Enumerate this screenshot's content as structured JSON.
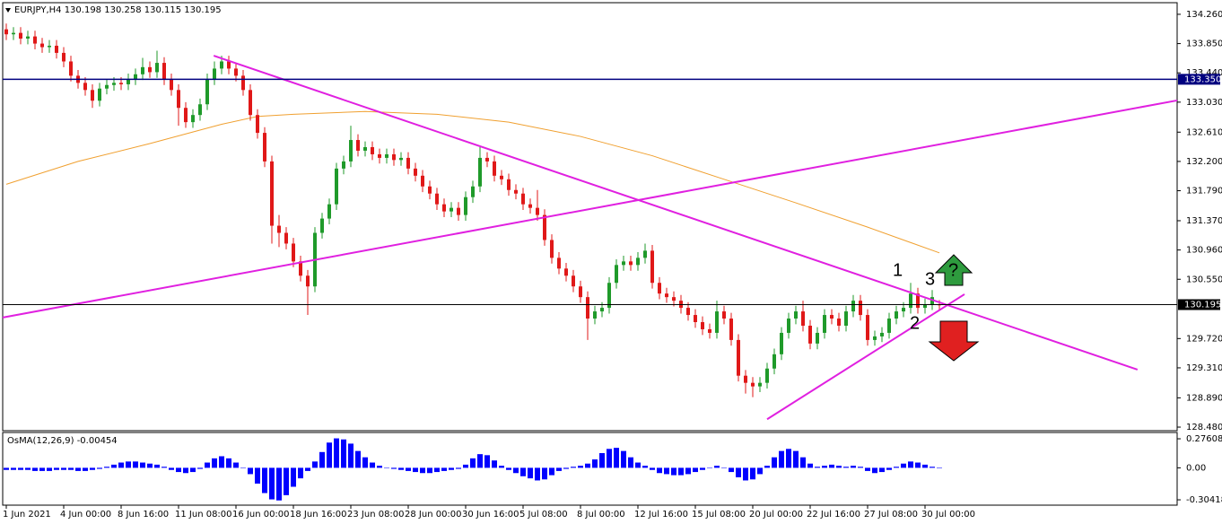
{
  "chart_data": {
    "type": "candlestick",
    "title": "EURJPY,H4  130.198 130.258 130.115 130.195",
    "up_color": "#1f9a2a",
    "down_color": "#e01818",
    "open": [
      134.05,
      133.98,
      134.0,
      133.92,
      133.95,
      133.85,
      133.8,
      133.82,
      133.72,
      133.6,
      133.4,
      133.3,
      133.2,
      133.05,
      133.22,
      133.27,
      133.3,
      133.28,
      133.35,
      133.42,
      133.52,
      133.45,
      133.58,
      133.35,
      133.2,
      132.95,
      132.75,
      132.85,
      133.0,
      133.35,
      133.5,
      133.6,
      133.5,
      133.4,
      133.2,
      132.85,
      132.6,
      132.2,
      131.3,
      131.2,
      131.05,
      130.8,
      130.6,
      130.45,
      131.2,
      131.4,
      131.6,
      132.1,
      132.2,
      132.5,
      132.35,
      132.4,
      132.3,
      132.25,
      132.3,
      132.22,
      132.25,
      132.1,
      132.0,
      131.85,
      131.75,
      131.6,
      131.5,
      131.55,
      131.45,
      131.7,
      131.85,
      132.25,
      132.2,
      132.0,
      131.95,
      131.8,
      131.75,
      131.6,
      131.55,
      131.45,
      131.1,
      130.85,
      130.7,
      130.6,
      130.45,
      130.3,
      130.0,
      130.1,
      130.15,
      130.5,
      130.75,
      130.8,
      130.75,
      130.85,
      130.95,
      130.5,
      130.35,
      130.3,
      130.25,
      130.15,
      130.05,
      129.95,
      129.85,
      129.8,
      130.1,
      130.0,
      129.7,
      129.2,
      129.1,
      129.05,
      129.1,
      129.3,
      129.5,
      129.8,
      130.0,
      130.1,
      129.9,
      129.65,
      129.8,
      130.05,
      130.0,
      129.9,
      130.1,
      130.25,
      130.05,
      129.7,
      129.75,
      129.8,
      130.0,
      130.1,
      130.15,
      130.35,
      130.15,
      130.2,
      130.198
    ],
    "high": [
      134.13,
      134.08,
      134.08,
      134.03,
      134.03,
      133.93,
      133.9,
      133.9,
      133.8,
      133.68,
      133.48,
      133.38,
      133.28,
      133.3,
      133.35,
      133.38,
      133.38,
      133.43,
      133.5,
      133.65,
      133.6,
      133.75,
      133.66,
      133.43,
      133.28,
      133.03,
      132.93,
      133.08,
      133.43,
      133.6,
      133.68,
      133.68,
      133.58,
      133.48,
      133.28,
      132.93,
      132.68,
      132.28,
      131.45,
      131.28,
      131.13,
      130.88,
      130.68,
      131.28,
      131.48,
      131.68,
      132.18,
      132.28,
      132.7,
      132.58,
      132.48,
      132.48,
      132.38,
      132.38,
      132.38,
      132.33,
      132.33,
      132.18,
      132.08,
      131.93,
      131.83,
      131.68,
      131.63,
      131.63,
      131.78,
      131.93,
      132.4,
      132.33,
      132.28,
      132.08,
      132.03,
      131.88,
      131.83,
      131.68,
      131.8,
      131.53,
      131.18,
      130.93,
      130.78,
      130.68,
      130.53,
      130.38,
      130.18,
      130.23,
      130.58,
      130.83,
      130.88,
      130.88,
      130.93,
      131.05,
      131.03,
      130.58,
      130.43,
      130.38,
      130.33,
      130.23,
      130.13,
      130.03,
      129.93,
      130.25,
      130.18,
      130.08,
      129.78,
      129.28,
      129.18,
      129.18,
      129.38,
      129.58,
      129.88,
      130.08,
      130.18,
      130.25,
      129.98,
      129.88,
      130.13,
      130.13,
      130.08,
      130.18,
      130.33,
      130.33,
      130.13,
      129.83,
      129.88,
      130.08,
      130.18,
      130.23,
      130.5,
      130.43,
      130.28,
      130.4,
      130.258
    ],
    "low": [
      133.9,
      133.9,
      133.84,
      133.84,
      133.77,
      133.72,
      133.72,
      133.64,
      133.52,
      133.32,
      133.22,
      133.12,
      132.95,
      132.97,
      133.14,
      133.19,
      133.2,
      133.2,
      133.27,
      133.34,
      133.37,
      133.37,
      133.27,
      133.12,
      132.7,
      132.67,
      132.67,
      132.77,
      132.92,
      133.27,
      133.42,
      133.42,
      133.32,
      133.12,
      132.77,
      132.52,
      132.12,
      131.05,
      131.0,
      130.97,
      130.72,
      130.52,
      130.05,
      130.37,
      131.12,
      131.32,
      131.52,
      132.02,
      132.12,
      132.27,
      132.27,
      132.22,
      132.17,
      132.17,
      132.14,
      132.14,
      132.02,
      131.92,
      131.77,
      131.67,
      131.52,
      131.42,
      131.42,
      131.37,
      131.37,
      131.62,
      131.77,
      132.12,
      131.92,
      131.87,
      131.72,
      131.67,
      131.52,
      131.47,
      131.37,
      131.02,
      130.77,
      130.62,
      130.52,
      130.37,
      130.22,
      129.7,
      129.92,
      130.02,
      130.07,
      130.42,
      130.67,
      130.67,
      130.67,
      130.77,
      130.42,
      130.27,
      130.22,
      130.17,
      130.07,
      129.97,
      129.87,
      129.77,
      129.72,
      129.72,
      129.92,
      129.62,
      129.12,
      128.95,
      128.9,
      128.97,
      129.02,
      129.22,
      129.42,
      129.72,
      129.92,
      129.82,
      129.57,
      129.57,
      129.72,
      129.92,
      129.82,
      129.82,
      130.02,
      129.97,
      129.62,
      129.62,
      129.67,
      129.72,
      129.92,
      130.02,
      130.07,
      130.07,
      130.07,
      130.12,
      130.115
    ],
    "close": [
      133.98,
      134.0,
      133.92,
      133.95,
      133.85,
      133.8,
      133.82,
      133.72,
      133.6,
      133.4,
      133.3,
      133.2,
      133.05,
      133.22,
      133.27,
      133.3,
      133.28,
      133.35,
      133.42,
      133.52,
      133.45,
      133.58,
      133.35,
      133.2,
      132.95,
      132.75,
      132.85,
      133.0,
      133.35,
      133.5,
      133.6,
      133.5,
      133.4,
      133.2,
      132.85,
      132.6,
      132.2,
      131.3,
      131.2,
      131.05,
      130.8,
      130.6,
      130.45,
      131.2,
      131.4,
      131.6,
      132.1,
      132.2,
      132.5,
      132.35,
      132.4,
      132.3,
      132.25,
      132.3,
      132.22,
      132.25,
      132.1,
      132.0,
      131.85,
      131.75,
      131.6,
      131.5,
      131.55,
      131.45,
      131.7,
      131.85,
      132.25,
      132.2,
      132.0,
      131.95,
      131.8,
      131.75,
      131.6,
      131.55,
      131.45,
      131.1,
      130.85,
      130.7,
      130.6,
      130.45,
      130.3,
      130.0,
      130.1,
      130.15,
      130.5,
      130.75,
      130.8,
      130.75,
      130.85,
      130.95,
      130.5,
      130.35,
      130.3,
      130.25,
      130.15,
      130.05,
      129.95,
      129.85,
      129.8,
      130.1,
      130.0,
      129.7,
      129.2,
      129.1,
      129.05,
      129.1,
      129.3,
      129.5,
      129.8,
      130.0,
      130.1,
      129.9,
      129.65,
      129.8,
      130.05,
      130.0,
      129.9,
      130.1,
      130.25,
      130.05,
      129.7,
      129.75,
      129.8,
      130.0,
      130.1,
      130.15,
      130.35,
      130.15,
      130.2,
      130.3,
      130.195
    ],
    "ylim": [
      128.43,
      134.41
    ],
    "yticks": [
      {
        "value": 134.26,
        "label": "134.260"
      },
      {
        "value": 133.85,
        "label": "133.850"
      },
      {
        "value": 133.44,
        "label": "133.440"
      },
      {
        "value": 133.03,
        "label": "133.030"
      },
      {
        "value": 132.61,
        "label": "132.610"
      },
      {
        "value": 132.2,
        "label": "132.200"
      },
      {
        "value": 131.79,
        "label": "131.790"
      },
      {
        "value": 131.37,
        "label": "131.370"
      },
      {
        "value": 130.96,
        "label": "130.960"
      },
      {
        "value": 130.55,
        "label": "130.550"
      },
      {
        "value": 129.72,
        "label": "129.720"
      },
      {
        "value": 129.31,
        "label": "129.310"
      },
      {
        "value": 128.89,
        "label": "128.890"
      },
      {
        "value": 128.48,
        "label": "128.480"
      }
    ],
    "xlim": [
      -0.5,
      163.125
    ],
    "xticks": [
      {
        "value": 0,
        "label": "1 Jun 2021"
      },
      {
        "value": 8,
        "label": "4 Jun 00:00"
      },
      {
        "value": 16,
        "label": "8 Jun 16:00"
      },
      {
        "value": 24,
        "label": "11 Jun 08:00"
      },
      {
        "value": 32,
        "label": "16 Jun 00:00"
      },
      {
        "value": 40,
        "label": "18 Jun 16:00"
      },
      {
        "value": 48,
        "label": "23 Jun 08:00"
      },
      {
        "value": 56,
        "label": "28 Jun 00:00"
      },
      {
        "value": 64,
        "label": "30 Jun 16:00"
      },
      {
        "value": 72,
        "label": "5 Jul 08:00"
      },
      {
        "value": 80,
        "label": "8 Jul 00:00"
      },
      {
        "value": 88,
        "label": "12 Jul 16:00"
      },
      {
        "value": 96,
        "label": "15 Jul 08:00"
      },
      {
        "value": 104,
        "label": "20 Jul 00:00"
      },
      {
        "value": 112,
        "label": "22 Jul 16:00"
      },
      {
        "value": 120,
        "label": "27 Jul 08:00"
      },
      {
        "value": 128,
        "label": "30 Jul 00:00"
      }
    ],
    "moving_average": {
      "color": "#f0a030",
      "x": [
        0,
        10,
        20,
        30,
        35,
        40,
        50,
        60,
        70,
        80,
        90,
        100,
        110,
        120,
        130
      ],
      "values": [
        131.88,
        132.2,
        132.45,
        132.72,
        132.83,
        132.86,
        132.9,
        132.86,
        132.75,
        132.55,
        132.28,
        131.95,
        131.62,
        131.28,
        130.92
      ]
    },
    "trendlines": [
      {
        "color": "#e020e0",
        "x": [
          28.9,
          157.6
        ],
        "values": [
          133.68,
          129.285
        ]
      },
      {
        "color": "#e020e0",
        "x": [
          -0.5,
          163.125
        ],
        "values": [
          130.014,
          133.054
        ]
      },
      {
        "color": "#e020e0",
        "x": [
          106,
          133.5
        ],
        "values": [
          128.59,
          130.34
        ]
      }
    ],
    "price_lines": [
      {
        "value": 133.35,
        "label": "133.350",
        "color": "#00007f"
      },
      {
        "value": 130.195,
        "label": "130.195",
        "color": "#000000"
      }
    ],
    "annotations": [
      "1",
      "2",
      "3",
      "?"
    ],
    "indicator": {
      "type": "bar",
      "title": "OsMA(12,26,9) -0.00454",
      "color": "#0000ff",
      "values": [
        -0.02,
        -0.02,
        -0.02,
        -0.02,
        -0.03,
        -0.03,
        -0.03,
        -0.02,
        -0.02,
        -0.02,
        -0.03,
        -0.03,
        -0.02,
        -0.01,
        0.01,
        0.03,
        0.05,
        0.06,
        0.06,
        0.05,
        0.04,
        0.03,
        0.01,
        -0.02,
        -0.04,
        -0.05,
        -0.04,
        -0.01,
        0.05,
        0.09,
        0.11,
        0.09,
        0.05,
        0.0,
        -0.06,
        -0.15,
        -0.24,
        -0.3,
        -0.31,
        -0.26,
        -0.18,
        -0.1,
        -0.03,
        0.06,
        0.15,
        0.24,
        0.28,
        0.27,
        0.23,
        0.16,
        0.1,
        0.05,
        0.02,
        0.0,
        -0.01,
        -0.02,
        -0.03,
        -0.04,
        -0.05,
        -0.05,
        -0.04,
        -0.03,
        -0.02,
        -0.01,
        0.03,
        0.09,
        0.13,
        0.12,
        0.07,
        0.02,
        -0.02,
        -0.05,
        -0.08,
        -0.1,
        -0.12,
        -0.11,
        -0.07,
        -0.03,
        -0.01,
        0.01,
        0.02,
        0.04,
        0.08,
        0.14,
        0.18,
        0.19,
        0.16,
        0.1,
        0.05,
        0.02,
        -0.02,
        -0.05,
        -0.06,
        -0.07,
        -0.07,
        -0.06,
        -0.04,
        -0.02,
        0.0,
        0.02,
        0.0,
        -0.04,
        -0.09,
        -0.12,
        -0.11,
        -0.06,
        0.02,
        0.1,
        0.16,
        0.18,
        0.16,
        0.1,
        0.04,
        0.01,
        0.02,
        0.03,
        0.02,
        0.01,
        0.02,
        0.01,
        -0.03,
        -0.05,
        -0.04,
        -0.02,
        0.01,
        0.04,
        0.06,
        0.05,
        0.03,
        0.01,
        -0.00454
      ],
      "ylim": [
        -0.355,
        0.336
      ],
      "yticks": [
        0.27608,
        {
          "value": 0,
          "label": "0.00"
        },
        -0.30418
      ]
    }
  }
}
